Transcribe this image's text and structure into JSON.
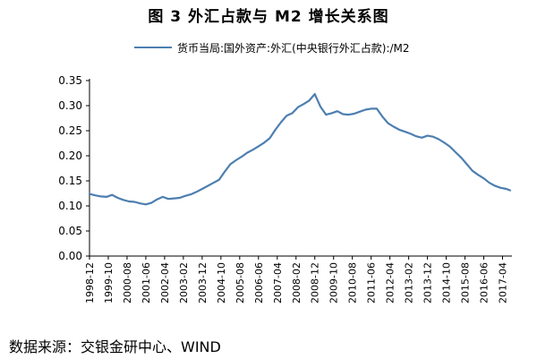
{
  "page_title": "图 3  外汇占款与 M2 增长关系图",
  "source": "数据来源：交银金研中心、WIND",
  "colors": {
    "series": "#4d7fb0",
    "axis": "#000000",
    "grid": "#d9d9d9"
  },
  "chart_data": {
    "type": "line",
    "title": "图 3  外汇占款与 M2 增长关系图",
    "xlabel": "",
    "ylabel": "",
    "ylim": [
      0.0,
      0.35
    ],
    "yticks": [
      "0.00",
      "0.05",
      "0.10",
      "0.15",
      "0.20",
      "0.25",
      "0.30",
      "0.35"
    ],
    "xticks": [
      "1998-12",
      "1999-10",
      "2000-08",
      "2001-06",
      "2002-04",
      "2003-02",
      "2003-12",
      "2004-10",
      "2005-08",
      "2006-06",
      "2007-04",
      "2008-02",
      "2008-12",
      "2009-10",
      "2010-08",
      "2011-06",
      "2012-04",
      "2013-02",
      "2013-12",
      "2014-10",
      "2015-08",
      "2016-06",
      "2017-04"
    ],
    "grid": false,
    "legend_position": "top",
    "series": [
      {
        "name": "货币当局:国外资产:外汇(中央银行外汇占款):/M2",
        "x": [
          "1998-12",
          "1999-03",
          "1999-06",
          "1999-09",
          "1999-12",
          "2000-03",
          "2000-06",
          "2000-09",
          "2000-12",
          "2001-03",
          "2001-06",
          "2001-09",
          "2001-12",
          "2002-03",
          "2002-06",
          "2002-09",
          "2002-12",
          "2003-03",
          "2003-06",
          "2003-09",
          "2003-12",
          "2004-03",
          "2004-06",
          "2004-09",
          "2004-12",
          "2005-03",
          "2005-06",
          "2005-09",
          "2005-12",
          "2006-03",
          "2006-06",
          "2006-09",
          "2006-12",
          "2007-03",
          "2007-06",
          "2007-09",
          "2007-12",
          "2008-03",
          "2008-06",
          "2008-09",
          "2008-12",
          "2009-03",
          "2009-06",
          "2009-09",
          "2009-12",
          "2010-03",
          "2010-06",
          "2010-09",
          "2010-12",
          "2011-03",
          "2011-06",
          "2011-09",
          "2011-12",
          "2012-03",
          "2012-06",
          "2012-09",
          "2012-12",
          "2013-03",
          "2013-06",
          "2013-09",
          "2013-12",
          "2014-03",
          "2014-06",
          "2014-09",
          "2014-12",
          "2015-03",
          "2015-06",
          "2015-09",
          "2015-12",
          "2016-03",
          "2016-06",
          "2016-09",
          "2016-12",
          "2017-03",
          "2017-06",
          "2017-08"
        ],
        "values": [
          0.124,
          0.121,
          0.119,
          0.118,
          0.122,
          0.116,
          0.112,
          0.109,
          0.108,
          0.105,
          0.103,
          0.106,
          0.113,
          0.118,
          0.114,
          0.115,
          0.116,
          0.12,
          0.123,
          0.128,
          0.134,
          0.14,
          0.146,
          0.152,
          0.168,
          0.183,
          0.191,
          0.198,
          0.206,
          0.212,
          0.219,
          0.226,
          0.235,
          0.252,
          0.267,
          0.28,
          0.285,
          0.297,
          0.303,
          0.31,
          0.323,
          0.298,
          0.282,
          0.285,
          0.289,
          0.283,
          0.282,
          0.284,
          0.288,
          0.292,
          0.294,
          0.294,
          0.278,
          0.265,
          0.258,
          0.252,
          0.248,
          0.244,
          0.239,
          0.236,
          0.24,
          0.238,
          0.233,
          0.226,
          0.218,
          0.207,
          0.196,
          0.183,
          0.17,
          0.162,
          0.155,
          0.146,
          0.14,
          0.136,
          0.134,
          0.131
        ]
      }
    ]
  }
}
